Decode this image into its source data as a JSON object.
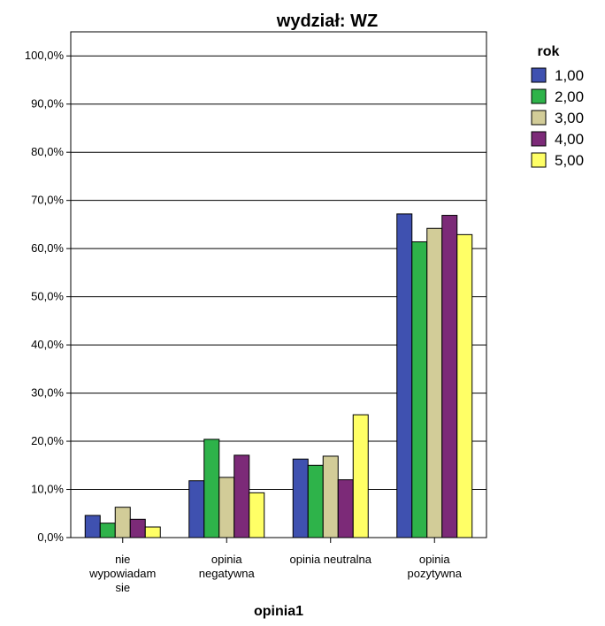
{
  "chart_data": {
    "type": "bar",
    "title": "wydział: WZ",
    "xlabel": "opinia1",
    "ylabel": "",
    "ylim": [
      0,
      105
    ],
    "y_ticks": [
      "0,0%",
      "10,0%",
      "20,0%",
      "30,0%",
      "40,0%",
      "50,0%",
      "60,0%",
      "70,0%",
      "80,0%",
      "90,0%",
      "100,0%"
    ],
    "grid": true,
    "legend_position": "right",
    "legend_title": "rok",
    "categories": [
      [
        "nie",
        "wypowiadam",
        "sie"
      ],
      [
        "opinia",
        "negatywna"
      ],
      [
        "opinia neutralna"
      ],
      [
        "opinia",
        "pozytywna"
      ]
    ],
    "series": [
      {
        "name": "1,00",
        "color": "#3f51b0",
        "values": [
          4.6,
          11.8,
          16.3,
          67.2
        ]
      },
      {
        "name": "2,00",
        "color": "#2eb34a",
        "values": [
          3.0,
          20.4,
          15.0,
          61.4
        ]
      },
      {
        "name": "3,00",
        "color": "#d2cc98",
        "values": [
          6.3,
          12.5,
          16.9,
          64.2
        ]
      },
      {
        "name": "4,00",
        "color": "#7c2a78",
        "values": [
          3.8,
          17.1,
          12.0,
          66.9
        ]
      },
      {
        "name": "5,00",
        "color": "#ffff66",
        "values": [
          2.2,
          9.3,
          25.5,
          62.9
        ]
      }
    ]
  }
}
